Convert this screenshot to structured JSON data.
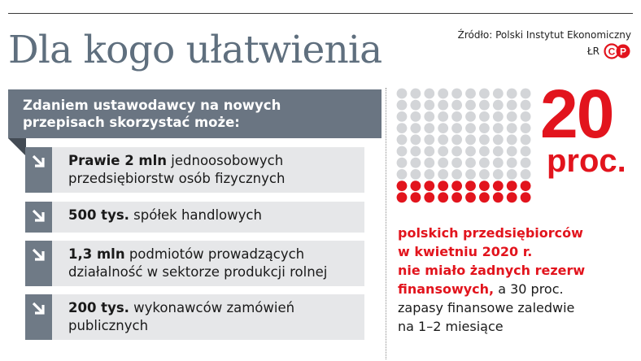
{
  "title": "Dla kogo ułatwienia",
  "source": "Źródło: Polski Instytut Ekonomiczny",
  "credit": "ŁR",
  "logo_text": "CP",
  "header": "Zdaniem ustawodawcy na nowych przepisach skorzystać może:",
  "items": [
    {
      "bold": "Prawie 2 mln",
      "text": " jednoosobowych przedsiębiorstw osób fizycznych"
    },
    {
      "bold": "500 tys.",
      "text": " spółek handlowych"
    },
    {
      "bold": "1,3 mln",
      "text": " podmiotów prowadzących działalność w sektorze produkcji rolnej"
    },
    {
      "bold": "200 tys.",
      "text": " wykonawców zamówień publicznych"
    }
  ],
  "stat": {
    "value": "20",
    "unit": "proc.",
    "red_lines": [
      "polskich przedsiębiorców",
      "w kwietniu 2020 r.",
      "nie miało żadnych rezerw"
    ],
    "red_last": "finansowych,",
    "rest_first": " a 30 proc.",
    "rest_lines": [
      "zapasy finansowe zaledwie",
      "na 1–2 miesiące"
    ]
  },
  "dot_grid": {
    "total": 100,
    "highlighted": 20,
    "columns": 10
  },
  "colors": {
    "accent": "#e2141d",
    "slate": "#6a7582",
    "dot": "#d3d5d8",
    "item_bg": "#e6e7e9"
  },
  "icons": {
    "item_arrow": "arrow-down-right-icon",
    "logo": "cp-logo"
  }
}
